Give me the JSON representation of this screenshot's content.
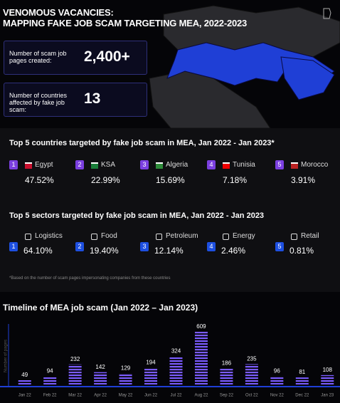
{
  "header": {
    "title_line1": "VENOMOUS VACANCIES:",
    "title_line2": "MAPPING FAKE JOB SCAM TARGETING MEA, 2022-2023"
  },
  "stats": [
    {
      "label": "Number of scam job pages created:",
      "value": "2,400+"
    },
    {
      "label": "Number of countries affected by fake job scam:",
      "value": "13"
    }
  ],
  "countries": {
    "heading": "Top 5 countries targeted by fake job scam in MEA, Jan 2022 - Jan 2023*",
    "items": [
      {
        "rank": "1",
        "name": "Egypt",
        "share": "47.52%"
      },
      {
        "rank": "2",
        "name": "KSA",
        "share": "22.99%"
      },
      {
        "rank": "3",
        "name": "Algeria",
        "share": "15.69%"
      },
      {
        "rank": "4",
        "name": "Tunisia",
        "share": "7.18%"
      },
      {
        "rank": "5",
        "name": "Morocco",
        "share": "3.91%"
      }
    ]
  },
  "sectors": {
    "heading": "Top 5 sectors targeted by fake job scam in MEA, Jan 2022 - Jan 2023",
    "items": [
      {
        "rank": "1",
        "name": "Logistics",
        "share": "64.10%"
      },
      {
        "rank": "2",
        "name": "Food",
        "share": "19.40%"
      },
      {
        "rank": "3",
        "name": "Petroleum",
        "share": "12.14%"
      },
      {
        "rank": "4",
        "name": "Energy",
        "share": "2.46%"
      },
      {
        "rank": "5",
        "name": "Retail",
        "share": "0.81%"
      }
    ]
  },
  "footnote": "*Based on the number of scam pages impersonating companies from these countries",
  "chart_data": {
    "type": "bar",
    "title": "Timeline of MEA job scam (Jan 2022 – Jan 2023)",
    "y_label": "Number of pages",
    "categories": [
      "Jan 22",
      "Feb 22",
      "Mar 22",
      "Apr 22",
      "May 22",
      "Jun 22",
      "Jul 22",
      "Aug 22",
      "Sep 22",
      "Oct 22",
      "Nov 22",
      "Dec 22",
      "Jan 23"
    ],
    "values": [
      49,
      94,
      232,
      142,
      129,
      194,
      324,
      609,
      186,
      235,
      96,
      81,
      108
    ],
    "color": "#7b5cff",
    "ylim": [
      0,
      640
    ]
  }
}
